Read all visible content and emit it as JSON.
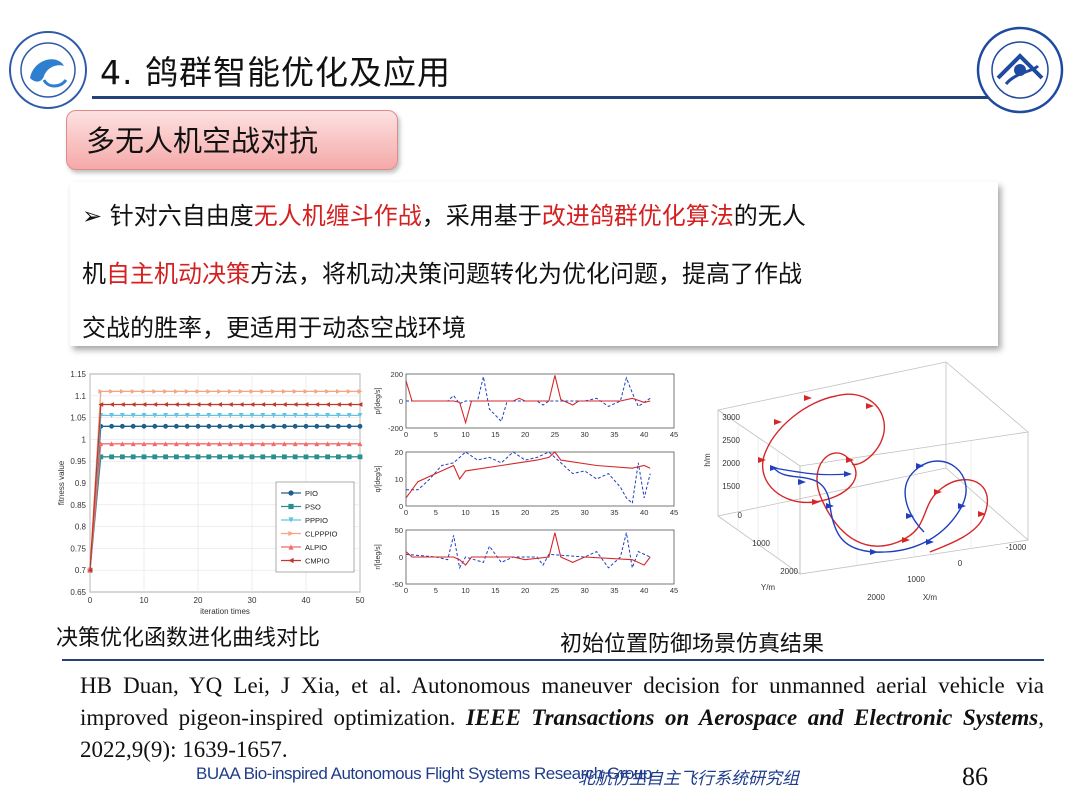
{
  "header": {
    "title": "4. 鸽群智能优化及应用",
    "left_logo_icon": "buaa-lab-seal-icon",
    "right_logo_icon": "beihang-university-seal-icon"
  },
  "section": {
    "label": "多无人机空战对抗"
  },
  "bullet": {
    "marker": "➢",
    "line1": [
      {
        "text": " 针对六自由度",
        "red": false
      },
      {
        "text": "无人机缠斗作战",
        "red": true
      },
      {
        "text": "，采用基于",
        "red": false
      },
      {
        "text": "改进鸽群优化算法",
        "red": true
      },
      {
        "text": "的无人",
        "red": false
      }
    ],
    "line2": [
      {
        "text": "机",
        "red": false
      },
      {
        "text": "自主机动决策",
        "red": true
      },
      {
        "text": "方法，将机动决策问题转化为优化问题，提高了作战",
        "red": false
      }
    ],
    "line3": [
      {
        "text": "交战的胜率，更适用于动态空战环境",
        "red": false
      }
    ]
  },
  "captions": {
    "left": "决策优化函数进化曲线对比",
    "right": "初始位置防御场景仿真结果"
  },
  "chart_data": [
    {
      "type": "line",
      "xlabel": "iteration times",
      "ylabel": "fitness value",
      "xlim": [
        0,
        50
      ],
      "ylim": [
        0.65,
        1.15
      ],
      "xticks": [
        "0",
        "10",
        "20",
        "30",
        "40",
        "50"
      ],
      "yticks": [
        "0.65",
        "0.7",
        "0.75",
        "0.8",
        "0.85",
        "0.9",
        "0.95",
        "1",
        "1.05",
        "1.1",
        "1.15"
      ],
      "legend_position": "right",
      "series": [
        {
          "name": "PIO",
          "color": "#1f5f8b",
          "marker": "circle",
          "start": 0.7,
          "final": 1.03
        },
        {
          "name": "PSO",
          "color": "#2a8f8f",
          "marker": "square",
          "start": 0.7,
          "final": 0.96
        },
        {
          "name": "PPPIO",
          "color": "#66c2e0",
          "marker": "triangle-down",
          "start": 0.7,
          "final": 1.055
        },
        {
          "name": "CLPPPIO",
          "color": "#f4a582",
          "marker": "triangle-right",
          "start": 0.7,
          "final": 1.11
        },
        {
          "name": "ALPIO",
          "color": "#f26b6b",
          "marker": "triangle-up",
          "start": 0.7,
          "final": 0.99
        },
        {
          "name": "CMPIO",
          "color": "#c0392b",
          "marker": "triangle-left",
          "start": 0.7,
          "final": 1.08
        }
      ]
    },
    {
      "type": "line",
      "panels": [
        {
          "ylabel": "p/[deg/s]",
          "ylim": [
            -200,
            200
          ],
          "yticks": [
            "200",
            "0",
            "-200"
          ]
        },
        {
          "ylabel": "q/[deg/s]",
          "ylim": [
            0,
            20
          ],
          "yticks": [
            "20",
            "10",
            "0"
          ]
        },
        {
          "ylabel": "r/[deg/s]",
          "ylim": [
            -50,
            50
          ],
          "yticks": [
            "50",
            "0",
            "-50"
          ]
        }
      ],
      "xlim": [
        0,
        45
      ],
      "xticks": [
        "0",
        "5",
        "10",
        "15",
        "20",
        "25",
        "30",
        "35",
        "40",
        "45"
      ],
      "series_colors": [
        "#d62728",
        "#1f3fbf"
      ]
    },
    {
      "type": "line",
      "projection": "3d",
      "xlabel": "X/m",
      "ylabel": "Y/m",
      "zlabel": "h/m",
      "zticks": [
        "3000",
        "2500",
        "2000",
        "1500"
      ],
      "yticks": [
        "0",
        "1000",
        "2000"
      ],
      "xticks": [
        "2000",
        "1000",
        "0",
        "-1000"
      ],
      "series_colors": [
        "#d62728",
        "#1f3fbf"
      ]
    }
  ],
  "reference": {
    "plain1": "HB Duan, YQ Lei, J Xia, et al. Autonomous maneuver decision for unmanned aerial vehicle via improved pigeon-inspired optimization. ",
    "journal": "IEEE Transactions on Aerospace and Electronic Systems",
    "plain2": ", 2022,9(9): 1639-1657."
  },
  "footer": {
    "group_en": "BUAA Bio-inspired Autonomous Flight Systems Research Group",
    "group_cn": "北航仿生自主飞行系统研究组",
    "page_number": "86"
  }
}
